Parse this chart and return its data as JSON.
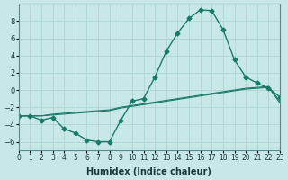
{
  "xlabel": "Humidex (Indice chaleur)",
  "background_color": "#c8e8e8",
  "grid_color": "#b0d8d8",
  "line_color": "#1a7a6a",
  "xlim": [
    0,
    23
  ],
  "ylim": [
    -7,
    10
  ],
  "yticks": [
    -6,
    -4,
    -2,
    0,
    2,
    4,
    6,
    8
  ],
  "xticks": [
    0,
    1,
    2,
    3,
    4,
    5,
    6,
    7,
    8,
    9,
    10,
    11,
    12,
    13,
    14,
    15,
    16,
    17,
    18,
    19,
    20,
    21,
    22,
    23
  ],
  "series": [
    {
      "x": [
        0,
        1,
        2,
        3,
        4,
        5,
        6,
        7,
        8,
        9,
        10,
        11,
        12,
        13,
        14,
        15,
        16,
        17,
        18,
        19,
        20,
        21,
        22,
        23
      ],
      "y": [
        -3,
        -3,
        -3.5,
        -3.2,
        -4.5,
        -5.0,
        -5.8,
        -6.0,
        -6.0,
        -3.5,
        -1.3,
        -1.0,
        1.5,
        4.5,
        6.6,
        8.3,
        9.3,
        9.2,
        7.0,
        3.5,
        1.5,
        0.8,
        0.2,
        -0.8
      ],
      "marker": "D",
      "markersize": 2.5,
      "linewidth": 1.0
    },
    {
      "x": [
        0,
        1,
        2,
        3,
        4,
        5,
        6,
        7,
        8,
        9,
        10,
        11,
        12,
        13,
        14,
        15,
        16,
        17,
        18,
        19,
        20,
        21,
        22,
        23
      ],
      "y": [
        -3,
        -3,
        -3.0,
        -2.8,
        -2.7,
        -2.6,
        -2.5,
        -2.4,
        -2.3,
        -2.0,
        -1.8,
        -1.6,
        -1.4,
        -1.2,
        -1.0,
        -0.8,
        -0.6,
        -0.4,
        -0.2,
        0.0,
        0.2,
        0.3,
        0.4,
        -1.3
      ],
      "marker": null,
      "markersize": 0,
      "linewidth": 0.8
    },
    {
      "x": [
        0,
        1,
        2,
        3,
        4,
        5,
        6,
        7,
        8,
        9,
        10,
        11,
        12,
        13,
        14,
        15,
        16,
        17,
        18,
        19,
        20,
        21,
        22,
        23
      ],
      "y": [
        -3,
        -3,
        -3.0,
        -2.9,
        -2.8,
        -2.7,
        -2.6,
        -2.5,
        -2.4,
        -2.1,
        -1.9,
        -1.7,
        -1.5,
        -1.3,
        -1.1,
        -0.9,
        -0.7,
        -0.5,
        -0.3,
        -0.1,
        0.1,
        0.2,
        0.3,
        -1.5
      ],
      "marker": null,
      "markersize": 0,
      "linewidth": 0.8
    }
  ]
}
